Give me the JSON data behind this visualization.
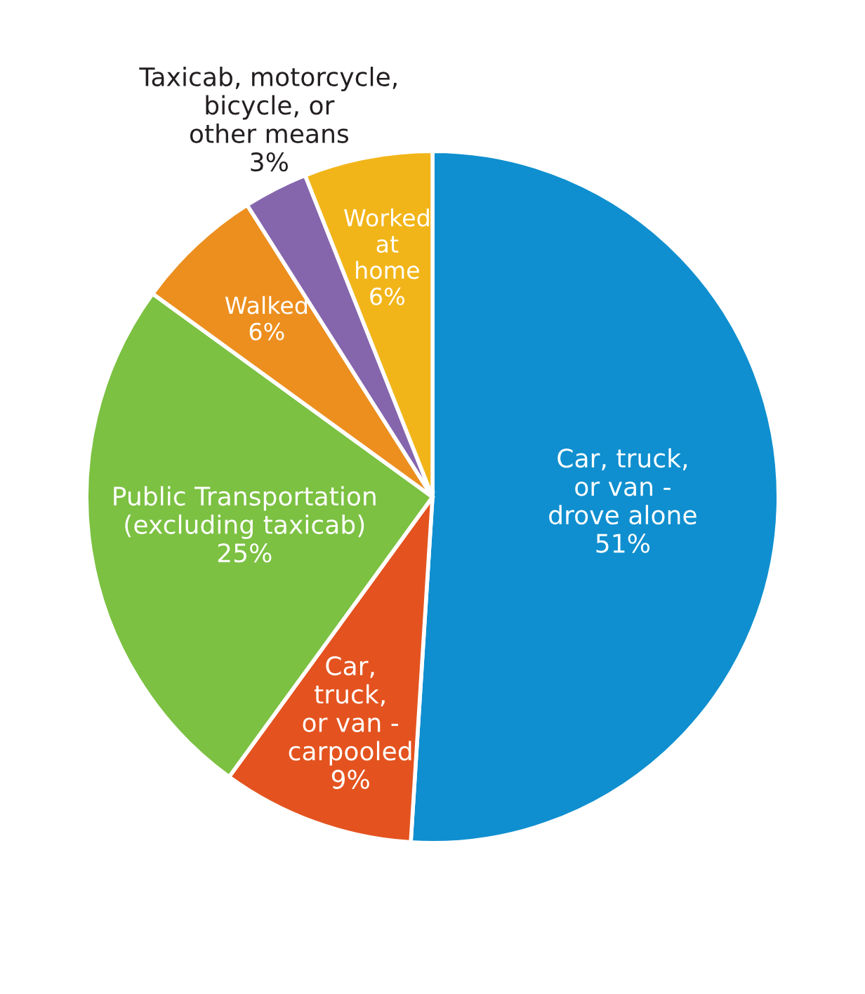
{
  "chart_data": {
    "type": "pie",
    "categories": [
      "Car, truck,\nor van -\ndrove alone",
      "Car,\ntruck,\nor van -\ncarpooled",
      "Public Transportation\n(excluding taxicab)",
      "Walked",
      "Taxicab, motorcycle,\nbicycle, or\nother means",
      "Worked\nat\nhome"
    ],
    "values": [
      51,
      9,
      25,
      6,
      3,
      6
    ],
    "colors": [
      "#0f8fcf",
      "#e4531f",
      "#7cc142",
      "#ec8f1f",
      "#8566ad",
      "#f2b519"
    ],
    "value_labels": [
      "51%",
      "9%",
      "25%",
      "6%",
      "3%",
      "6%"
    ]
  }
}
